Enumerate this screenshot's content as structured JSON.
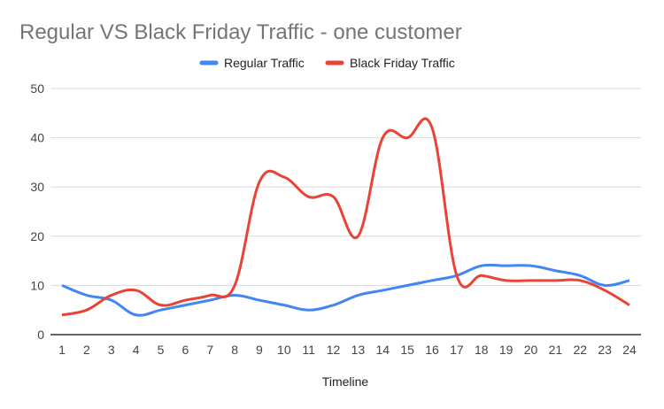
{
  "chart_data": {
    "type": "line",
    "title": "Regular VS Black Friday Traffic - one customer",
    "xlabel": "Timeline",
    "ylabel": "",
    "x": [
      1,
      2,
      3,
      4,
      5,
      6,
      7,
      8,
      9,
      10,
      11,
      12,
      13,
      14,
      15,
      16,
      17,
      18,
      19,
      20,
      21,
      22,
      23,
      24
    ],
    "ylim": [
      0,
      50
    ],
    "yticks": [
      0,
      10,
      20,
      30,
      40,
      50
    ],
    "grid": true,
    "legend_position": "top",
    "series": [
      {
        "name": "Regular Traffic",
        "color": "#4285f4",
        "values": [
          10,
          8,
          7,
          4,
          5,
          6,
          7,
          8,
          7,
          6,
          5,
          6,
          8,
          9,
          10,
          11,
          12,
          14,
          14,
          14,
          13,
          12,
          10,
          11
        ]
      },
      {
        "name": "Black Friday Traffic",
        "color": "#ea4335",
        "values": [
          4,
          5,
          8,
          9,
          6,
          7,
          8,
          10,
          31,
          32,
          28,
          28,
          20,
          40,
          40,
          42,
          12,
          12,
          11,
          11,
          11,
          11,
          9,
          6
        ]
      }
    ]
  }
}
